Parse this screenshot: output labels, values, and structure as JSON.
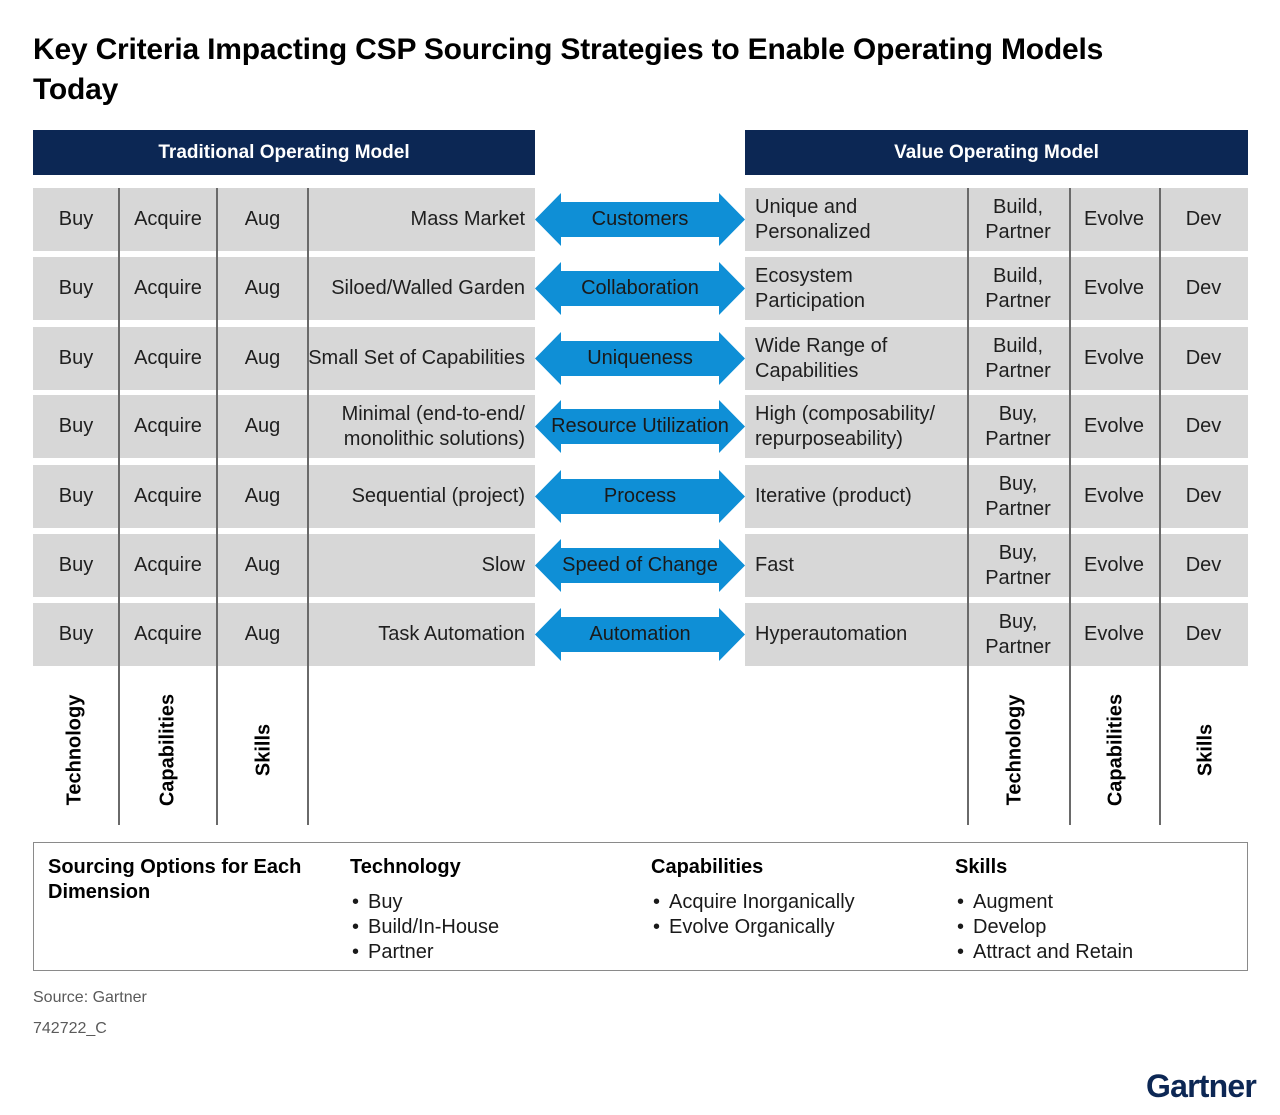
{
  "title": "Key Criteria Impacting CSP Sourcing Strategies to Enable Operating Models Today",
  "header_left": "Traditional Operating Model",
  "header_right": "Value Operating Model",
  "rows": [
    {
      "tech": "Buy",
      "cap": "Acquire",
      "skill": "Aug",
      "left": "Mass Market",
      "criterion": "Customers",
      "right": "Unique and Personalized",
      "vtech": "Build, Partner",
      "vcap": "Evolve",
      "vskill": "Dev"
    },
    {
      "tech": "Buy",
      "cap": "Acquire",
      "skill": "Aug",
      "left": "Siloed/Walled Garden",
      "criterion": "Collaboration",
      "right": "Ecosystem Participation",
      "vtech": "Build, Partner",
      "vcap": "Evolve",
      "vskill": "Dev"
    },
    {
      "tech": "Buy",
      "cap": "Acquire",
      "skill": "Aug",
      "left": "Small Set of Capabilities",
      "criterion": "Uniqueness",
      "right": "Wide Range of Capabilities",
      "vtech": "Build, Partner",
      "vcap": "Evolve",
      "vskill": "Dev"
    },
    {
      "tech": "Buy",
      "cap": "Acquire",
      "skill": "Aug",
      "left": "Minimal (end-to-end/ monolithic solutions)",
      "criterion": "Resource Utilization",
      "right": "High (composability/ repurposeability)",
      "vtech": "Buy, Partner",
      "vcap": "Evolve",
      "vskill": "Dev"
    },
    {
      "tech": "Buy",
      "cap": "Acquire",
      "skill": "Aug",
      "left": "Sequential (project)",
      "criterion": "Process",
      "right": "Iterative (product)",
      "vtech": "Buy, Partner",
      "vcap": "Evolve",
      "vskill": "Dev"
    },
    {
      "tech": "Buy",
      "cap": "Acquire",
      "skill": "Aug",
      "left": "Slow",
      "criterion": "Speed of Change",
      "right": "Fast",
      "vtech": "Buy, Partner",
      "vcap": "Evolve",
      "vskill": "Dev"
    },
    {
      "tech": "Buy",
      "cap": "Acquire",
      "skill": "Aug",
      "left": "Task Automation",
      "criterion": "Automation",
      "right": "Hyperautomation",
      "vtech": "Buy, Partner",
      "vcap": "Evolve",
      "vskill": "Dev"
    }
  ],
  "dimension_labels": {
    "technology": "Technology",
    "capabilities": "Capabilities",
    "skills": "Skills"
  },
  "legend": {
    "heading": "Sourcing Options for Each Dimension",
    "groups": [
      {
        "title": "Technology",
        "items": [
          "Buy",
          "Build/In-House",
          "Partner"
        ]
      },
      {
        "title": "Capabilities",
        "items": [
          "Acquire Inorganically",
          "Evolve Organically"
        ]
      },
      {
        "title": "Skills",
        "items": [
          "Augment",
          "Develop",
          "Attract and Retain"
        ]
      }
    ]
  },
  "source": "Source: Gartner",
  "doc_id": "742722_C",
  "logo": "Gartner",
  "colors": {
    "navy": "#0c2754",
    "arrow": "#0f8fd6",
    "row_bg": "#d7d7d7"
  }
}
